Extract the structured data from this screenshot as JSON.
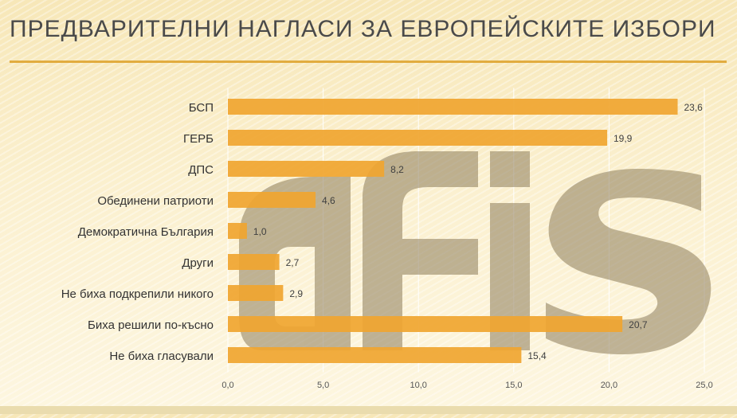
{
  "slide": {
    "title": "ПРЕДВАРИТЕЛНИ НАГЛАСИ ЗА ЕВРОПЕЙСКИТЕ ИЗБОРИ",
    "watermark": "afis"
  },
  "colors": {
    "bar": "#f0a530",
    "title_rule": "#e2ac3f",
    "grid": "#ffffff",
    "watermark": "#8d7c5a"
  },
  "chart_data": {
    "type": "bar",
    "orientation": "horizontal",
    "categories": [
      "БСП",
      "ГЕРБ",
      "ДПС",
      "Обединени патриоти",
      "Демократична България",
      "Други",
      "Не биха подкрепили никого",
      "Биха решили по-късно",
      "Не биха гласували"
    ],
    "values": [
      23.6,
      19.9,
      8.2,
      4.6,
      1.0,
      2.7,
      2.9,
      20.7,
      15.4
    ],
    "value_labels": [
      "23,6",
      "19,9",
      "8,2",
      "4,6",
      "1,0",
      "2,7",
      "2,9",
      "20,7",
      "15,4"
    ],
    "xlim": [
      0,
      25
    ],
    "x_ticks": [
      0,
      5,
      10,
      15,
      20,
      25
    ],
    "x_tick_labels": [
      "0,0",
      "5,0",
      "10,0",
      "15,0",
      "20,0",
      "25,0"
    ],
    "grid": true,
    "legend": "none"
  }
}
